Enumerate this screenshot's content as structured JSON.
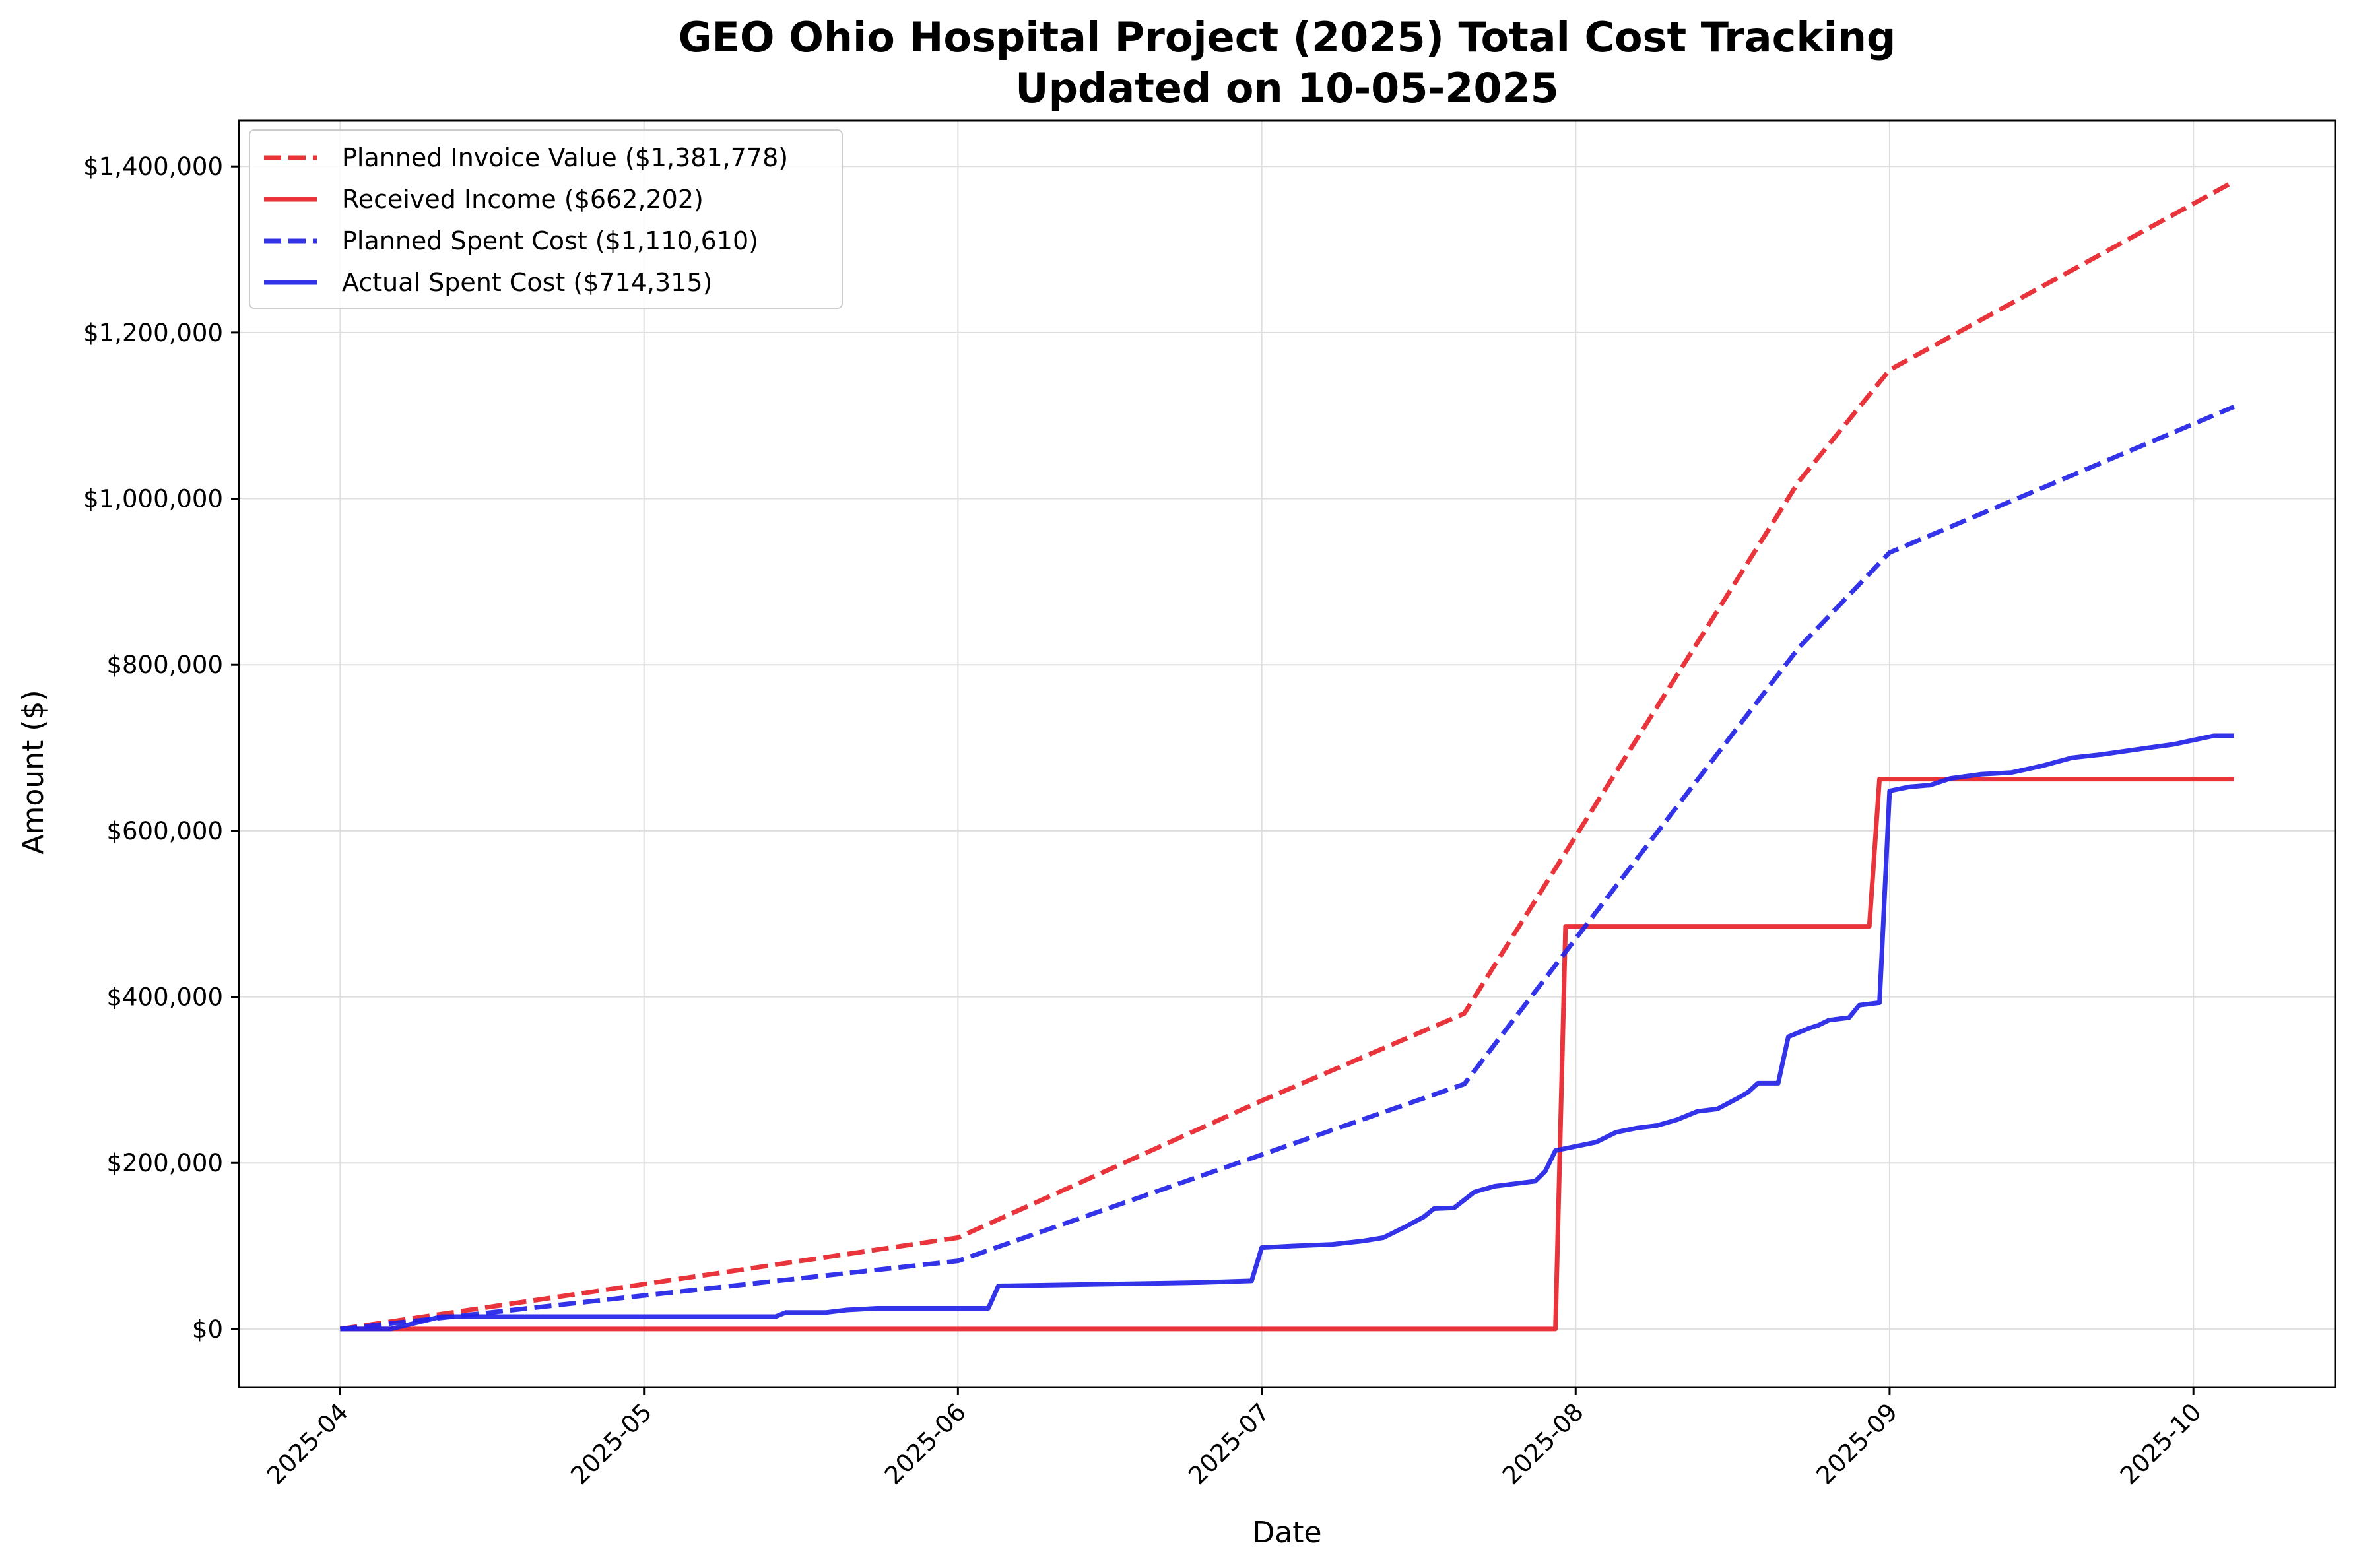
{
  "chart_data": {
    "type": "line",
    "title": "GEO Ohio Hospital Project (2025) Total Cost Tracking",
    "subtitle": "Updated on 10-05-2025",
    "xlabel": "Date",
    "ylabel": "Amount ($)",
    "x_axis_type": "date",
    "xlim": [
      "2025-03-22",
      "2025-10-15"
    ],
    "ylim": [
      -70000,
      1455000
    ],
    "x_ticks": [
      {
        "value": "2025-04-01",
        "label": "2025-04"
      },
      {
        "value": "2025-05-01",
        "label": "2025-05"
      },
      {
        "value": "2025-06-01",
        "label": "2025-06"
      },
      {
        "value": "2025-07-01",
        "label": "2025-07"
      },
      {
        "value": "2025-08-01",
        "label": "2025-08"
      },
      {
        "value": "2025-09-01",
        "label": "2025-09"
      },
      {
        "value": "2025-10-01",
        "label": "2025-10"
      }
    ],
    "y_ticks": [
      {
        "value": 0,
        "label": "$0"
      },
      {
        "value": 200000,
        "label": "$200,000"
      },
      {
        "value": 400000,
        "label": "$400,000"
      },
      {
        "value": 600000,
        "label": "$600,000"
      },
      {
        "value": 800000,
        "label": "$800,000"
      },
      {
        "value": 1000000,
        "label": "$1,000,000"
      },
      {
        "value": 1200000,
        "label": "$1,200,000"
      },
      {
        "value": 1400000,
        "label": "$1,400,000"
      }
    ],
    "grid": true,
    "legend_position": "top-left",
    "series": [
      {
        "name": "Planned Invoice Value ($1,381,778)",
        "color": "#e8232a",
        "dashed": true,
        "points": [
          [
            "2025-04-01",
            0
          ],
          [
            "2025-06-01",
            110000
          ],
          [
            "2025-07-01",
            275000
          ],
          [
            "2025-07-21",
            380000
          ],
          [
            "2025-08-23",
            1020000
          ],
          [
            "2025-09-01",
            1155000
          ],
          [
            "2025-10-05",
            1381778
          ]
        ]
      },
      {
        "name": "Received Income ($662,202)",
        "color": "#e8232a",
        "dashed": false,
        "points": [
          [
            "2025-04-01",
            0
          ],
          [
            "2025-07-30",
            0
          ],
          [
            "2025-07-31",
            485000
          ],
          [
            "2025-08-30",
            485000
          ],
          [
            "2025-08-31",
            662202
          ],
          [
            "2025-10-05",
            662202
          ]
        ]
      },
      {
        "name": "Planned Spent Cost ($1,110,610)",
        "color": "#2222e8",
        "dashed": true,
        "points": [
          [
            "2025-04-01",
            0
          ],
          [
            "2025-06-01",
            82000
          ],
          [
            "2025-07-01",
            210000
          ],
          [
            "2025-07-21",
            295000
          ],
          [
            "2025-08-23",
            820000
          ],
          [
            "2025-09-01",
            935000
          ],
          [
            "2025-10-05",
            1110610
          ]
        ]
      },
      {
        "name": "Actual Spent Cost ($714,315)",
        "color": "#2222e8",
        "dashed": false,
        "points": [
          [
            "2025-04-01",
            0
          ],
          [
            "2025-04-06",
            0
          ],
          [
            "2025-04-11",
            15000
          ],
          [
            "2025-05-14",
            15000
          ],
          [
            "2025-05-15",
            20000
          ],
          [
            "2025-05-19",
            20000
          ],
          [
            "2025-05-21",
            23000
          ],
          [
            "2025-05-24",
            25000
          ],
          [
            "2025-06-04",
            25000
          ],
          [
            "2025-06-05",
            52000
          ],
          [
            "2025-06-15",
            54000
          ],
          [
            "2025-06-25",
            56000
          ],
          [
            "2025-06-30",
            58000
          ],
          [
            "2025-07-01",
            98000
          ],
          [
            "2025-07-04",
            100000
          ],
          [
            "2025-07-08",
            102000
          ],
          [
            "2025-07-11",
            106000
          ],
          [
            "2025-07-13",
            110000
          ],
          [
            "2025-07-15",
            122000
          ],
          [
            "2025-07-17",
            135000
          ],
          [
            "2025-07-18",
            145000
          ],
          [
            "2025-07-20",
            146000
          ],
          [
            "2025-07-22",
            165000
          ],
          [
            "2025-07-24",
            172000
          ],
          [
            "2025-07-26",
            175000
          ],
          [
            "2025-07-28",
            178000
          ],
          [
            "2025-07-29",
            190000
          ],
          [
            "2025-07-30",
            215000
          ],
          [
            "2025-08-01",
            220000
          ],
          [
            "2025-08-03",
            225000
          ],
          [
            "2025-08-05",
            237000
          ],
          [
            "2025-08-07",
            242000
          ],
          [
            "2025-08-09",
            245000
          ],
          [
            "2025-08-11",
            252000
          ],
          [
            "2025-08-13",
            262000
          ],
          [
            "2025-08-15",
            265000
          ],
          [
            "2025-08-17",
            278000
          ],
          [
            "2025-08-18",
            285000
          ],
          [
            "2025-08-19",
            296000
          ],
          [
            "2025-08-21",
            296000
          ],
          [
            "2025-08-22",
            352000
          ],
          [
            "2025-08-24",
            362000
          ],
          [
            "2025-08-25",
            366000
          ],
          [
            "2025-08-26",
            372000
          ],
          [
            "2025-08-28",
            375000
          ],
          [
            "2025-08-29",
            390000
          ],
          [
            "2025-08-31",
            393000
          ],
          [
            "2025-09-01",
            648000
          ],
          [
            "2025-09-03",
            653000
          ],
          [
            "2025-09-05",
            655000
          ],
          [
            "2025-09-07",
            663000
          ],
          [
            "2025-09-10",
            668000
          ],
          [
            "2025-09-13",
            670000
          ],
          [
            "2025-09-16",
            678000
          ],
          [
            "2025-09-19",
            688000
          ],
          [
            "2025-09-22",
            692000
          ],
          [
            "2025-09-26",
            699000
          ],
          [
            "2025-09-29",
            704000
          ],
          [
            "2025-10-03",
            714315
          ],
          [
            "2025-10-05",
            714315
          ]
        ]
      }
    ]
  }
}
